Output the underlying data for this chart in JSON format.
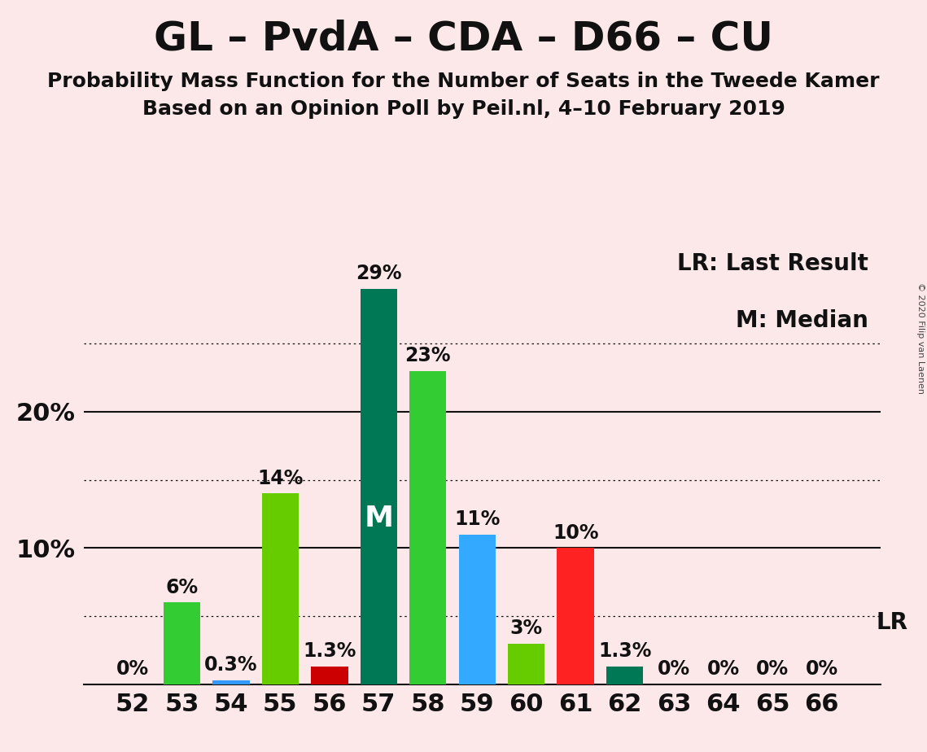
{
  "title": "GL – PvdA – CDA – D66 – CU",
  "subtitle1": "Probability Mass Function for the Number of Seats in the Tweede Kamer",
  "subtitle2": "Based on an Opinion Poll by Peil.nl, 4–10 February 2019",
  "copyright": "© 2020 Filip van Laenen",
  "legend_lr": "LR: Last Result",
  "legend_m": "M: Median",
  "lr_label": "LR",
  "background_color": "#fce8e8",
  "seats": [
    52,
    53,
    54,
    55,
    56,
    57,
    58,
    59,
    60,
    61,
    62,
    63,
    64,
    65,
    66
  ],
  "values": [
    0.0,
    6.0,
    0.3,
    14.0,
    1.3,
    29.0,
    23.0,
    11.0,
    3.0,
    10.0,
    1.3,
    0.0,
    0.0,
    0.0,
    0.0
  ],
  "bar_colors": [
    "#33cc33",
    "#33cc33",
    "#3399ff",
    "#66cc00",
    "#cc0000",
    "#007755",
    "#33cc33",
    "#33aaff",
    "#66cc00",
    "#ff2222",
    "#007755",
    "#33cc33",
    "#33cc33",
    "#33cc33",
    "#33cc33"
  ],
  "labels": [
    "0%",
    "6%",
    "0.3%",
    "14%",
    "1.3%",
    "29%",
    "23%",
    "11%",
    "3%",
    "10%",
    "1.3%",
    "0%",
    "0%",
    "0%",
    "0%"
  ],
  "median_seat": 57,
  "median_label": "M",
  "lr_seat": 66,
  "ylim": [
    0,
    32
  ],
  "grid_lines_dotted": [
    5,
    15,
    25
  ],
  "grid_lines_solid": [
    10,
    20
  ],
  "title_fontsize": 36,
  "subtitle_fontsize": 18,
  "axis_fontsize": 22,
  "bar_label_fontsize": 17,
  "median_fontsize": 26,
  "lr_fontsize": 20,
  "legend_fontsize": 20
}
